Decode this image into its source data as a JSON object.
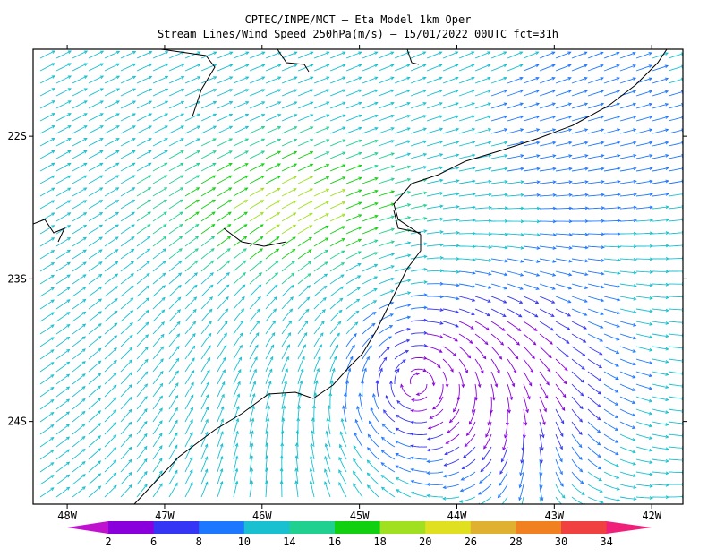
{
  "header": {
    "title": "CPTEC/INPE/MCT –  Eta Model 1km Oper",
    "subtitle": "Stream Lines/Wind Speed 250hPa(m/s) – 15/01/2022 00UTC fct=31h"
  },
  "map": {
    "lonlim": [
      -48.35,
      -41.68
    ],
    "latlim": [
      -24.58,
      -21.39
    ],
    "lonticks": [
      {
        "value": -48,
        "label": "48W"
      },
      {
        "value": -47,
        "label": "47W"
      },
      {
        "value": -46,
        "label": "46W"
      },
      {
        "value": -45,
        "label": "45W"
      },
      {
        "value": -44,
        "label": "44W"
      },
      {
        "value": -43,
        "label": "43W"
      },
      {
        "value": -42,
        "label": "42W"
      }
    ],
    "latticks": [
      {
        "value": -22,
        "label": "22S"
      },
      {
        "value": -23,
        "label": "23S"
      },
      {
        "value": -24,
        "label": "24S"
      }
    ]
  },
  "colorbar": {
    "levels": [
      2,
      6,
      8,
      10,
      14,
      16,
      18,
      20,
      26,
      28,
      30,
      34
    ],
    "colors": [
      "#c010d0",
      "#8a00dc",
      "#3535f5",
      "#1e78ff",
      "#18c0d0",
      "#20d090",
      "#10d010",
      "#a0e020",
      "#e0e020",
      "#e0b030",
      "#f08020",
      "#f04040",
      "#f0207a"
    ]
  }
}
